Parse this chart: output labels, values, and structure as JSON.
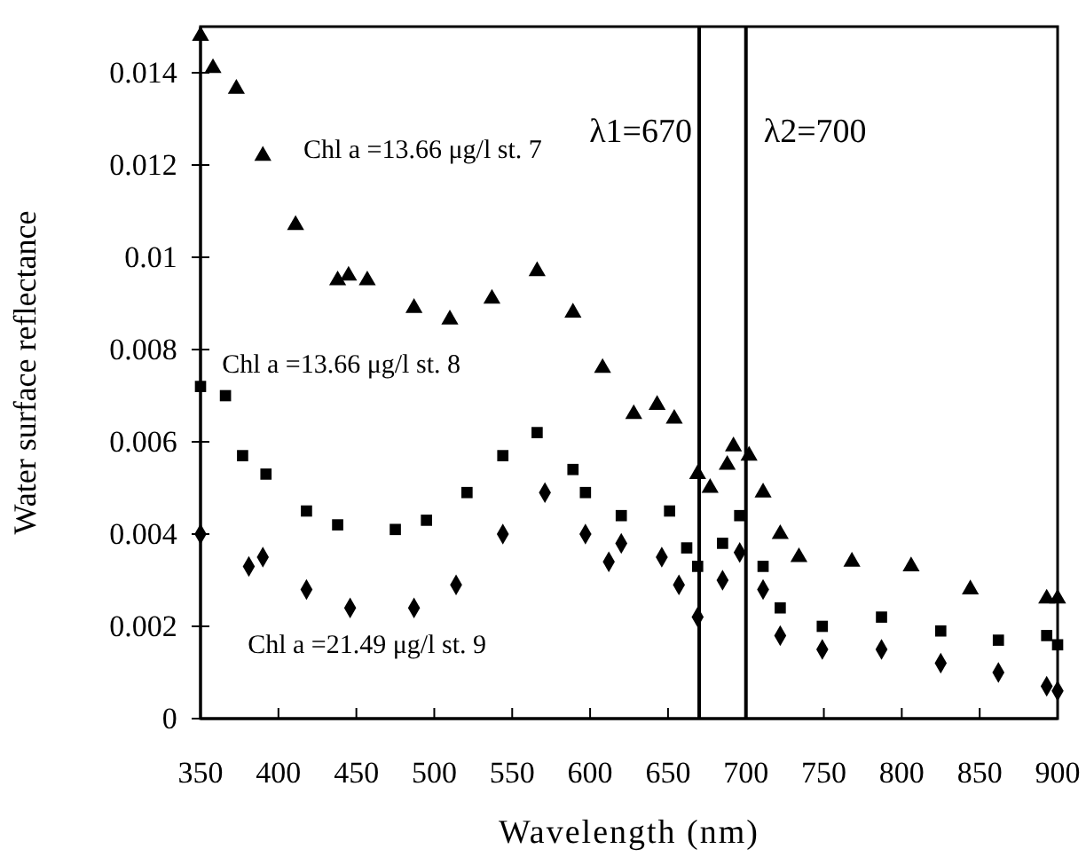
{
  "chart_data": {
    "type": "scatter",
    "xlabel": "Wavelength (nm)",
    "ylabel": "Water surface reflectance",
    "xlim": [
      350,
      900
    ],
    "xticks": [
      350,
      400,
      450,
      500,
      550,
      600,
      650,
      700,
      750,
      800,
      850,
      900
    ],
    "ylim": [
      0,
      0.015
    ],
    "yticks": [
      0,
      0.002,
      0.004,
      0.006,
      0.008,
      0.01,
      0.012,
      0.014
    ],
    "grid": false,
    "series": [
      {
        "name": "Chl a =13.66 μg/l st. 7",
        "color": "#000000",
        "marker": "triangle",
        "x": [
          350,
          358,
          373,
          390,
          411,
          438,
          445,
          457,
          487,
          510,
          537,
          566,
          589,
          608,
          628,
          643,
          654,
          669,
          677,
          688,
          692,
          702,
          711,
          722,
          734,
          768,
          806,
          844,
          893,
          900
        ],
        "values": [
          0.0148,
          0.0141,
          0.01365,
          0.0122,
          0.0107,
          0.0095,
          0.0096,
          0.0095,
          0.0089,
          0.00865,
          0.0091,
          0.0097,
          0.0088,
          0.0076,
          0.0066,
          0.0068,
          0.0065,
          0.0053,
          0.005,
          0.0055,
          0.0059,
          0.0057,
          0.0049,
          0.004,
          0.0035,
          0.0034,
          0.0033,
          0.0028,
          0.0026,
          0.0026
        ]
      },
      {
        "name": "Chl a =13.66 μg/l st. 8",
        "color": "#000000",
        "marker": "square",
        "x": [
          350,
          366,
          377,
          392,
          418,
          438,
          475,
          495,
          521,
          544,
          566,
          589,
          597,
          620,
          651,
          662,
          669,
          685,
          696,
          711,
          722,
          749,
          787,
          825,
          862,
          893,
          900
        ],
        "values": [
          0.0072,
          0.007,
          0.0057,
          0.0053,
          0.0045,
          0.0042,
          0.0041,
          0.0043,
          0.0049,
          0.0057,
          0.0062,
          0.0054,
          0.0049,
          0.0044,
          0.0045,
          0.0037,
          0.0033,
          0.0038,
          0.0044,
          0.0033,
          0.0024,
          0.002,
          0.0022,
          0.0019,
          0.0017,
          0.0018,
          0.0016
        ]
      },
      {
        "name": "Chl a =21.49 μg/l st. 9",
        "color": "#000000",
        "marker": "diamond",
        "x": [
          350,
          381,
          390,
          418,
          446,
          487,
          514,
          544,
          571,
          597,
          612,
          620,
          646,
          657,
          669,
          685,
          696,
          711,
          722,
          749,
          787,
          825,
          862,
          893,
          900
        ],
        "values": [
          0.004,
          0.0033,
          0.0035,
          0.0028,
          0.0024,
          0.0024,
          0.0029,
          0.004,
          0.0049,
          0.004,
          0.0034,
          0.0038,
          0.0035,
          0.0029,
          0.0022,
          0.003,
          0.0036,
          0.0028,
          0.0018,
          0.0015,
          0.0015,
          0.0012,
          0.001,
          0.0007,
          0.0006
        ]
      }
    ],
    "ref_lines": [
      {
        "axis": "x",
        "value": 670,
        "label": "λ1=670",
        "color": "#000000"
      },
      {
        "axis": "x",
        "value": 700,
        "label": "λ2=700",
        "color": "#000000"
      }
    ]
  }
}
